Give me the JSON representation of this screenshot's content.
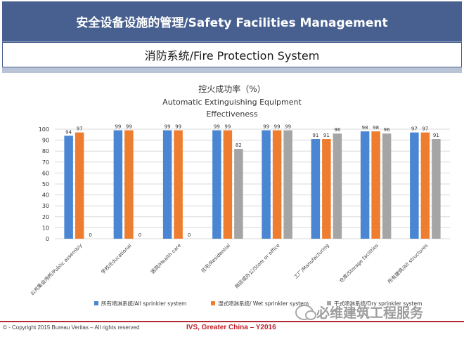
{
  "header": {
    "title": "安全设备设施的管理/Safety Facilities Management",
    "subtitle": "消防系统/Fire Protection System"
  },
  "colors": {
    "series_all": "#4a86d1",
    "series_wet": "#ee7d30",
    "series_dry": "#a5a5a5",
    "title_bar": "#47608f",
    "footer_accent": "#c0202a"
  },
  "chart_data": {
    "type": "bar",
    "title": "控火成功率（%）",
    "subtitle_line1": "Automatic Extinguishing Equipment",
    "subtitle_line2": "Effectiveness",
    "categories": [
      "公共集会场所/Public assembly",
      "学校/Educational",
      "医院/Health care",
      "住宅/Residential",
      "商店或办公/Store or office",
      "工厂/Manufacturing",
      "仓库/Storage facilities",
      "所有建筑/All structures"
    ],
    "series": [
      {
        "name": "所有喷淋系统/All sprinkler system",
        "values": [
          94,
          99,
          99,
          99,
          99,
          91,
          98,
          97
        ]
      },
      {
        "name": "湿式喷淋系统/ Wet sprinkler system",
        "values": [
          97,
          99,
          99,
          99,
          99,
          91,
          98,
          97
        ]
      },
      {
        "name": "干式喷淋系统/Dry sprinkler system",
        "values": [
          0,
          0,
          0,
          82,
          99,
          96,
          96,
          91
        ]
      }
    ],
    "ylim": [
      0,
      100
    ],
    "yticks": [
      0,
      10,
      20,
      30,
      40,
      50,
      60,
      70,
      80,
      90,
      100
    ],
    "grid": true,
    "legend_position": "bottom"
  },
  "footer": {
    "copyright": "© - Copyright  2015  Bureau  Veritas  – All rights reserved",
    "center": "IVS, Greater China – Y2016"
  },
  "watermark": {
    "text": "必维建筑工程服务"
  }
}
